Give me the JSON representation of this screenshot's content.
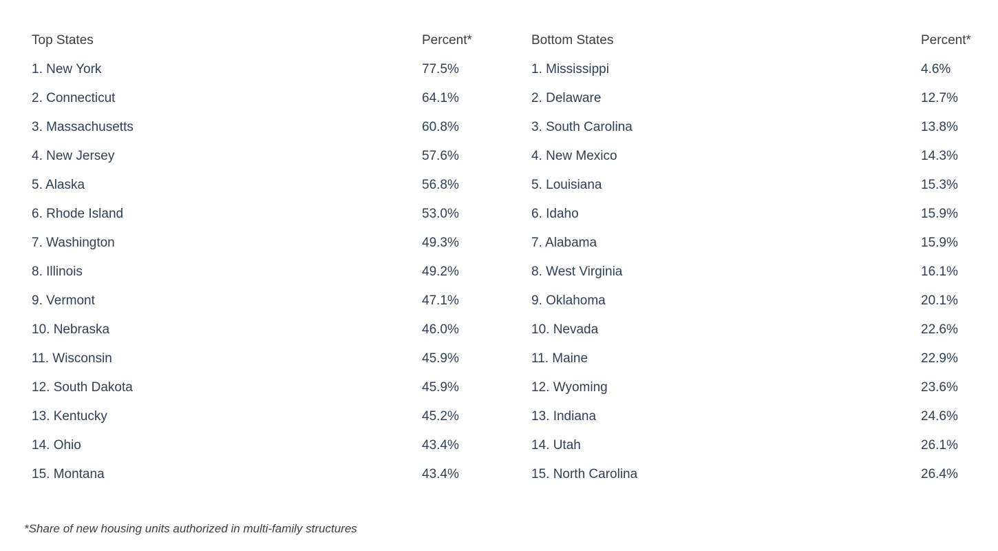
{
  "colors": {
    "background": "#ffffff",
    "header_text": "#3c3c3c",
    "data_text": "#2f3f55",
    "footnote_text": "#3d3d3d"
  },
  "chart_data": {
    "type": "table",
    "layout": "two side-by-side ranked tables, percent column left-aligned at fixed offset, no gridlines",
    "tables": [
      {
        "id": "top_states",
        "header": {
          "states": "Top States",
          "percent": "Percent*"
        },
        "rows": [
          {
            "rank": 1,
            "state": "New York",
            "percent": "77.5%",
            "value": 77.5
          },
          {
            "rank": 2,
            "state": "Connecticut",
            "percent": "64.1%",
            "value": 64.1
          },
          {
            "rank": 3,
            "state": "Massachusetts",
            "percent": "60.8%",
            "value": 60.8
          },
          {
            "rank": 4,
            "state": "New Jersey",
            "percent": "57.6%",
            "value": 57.6
          },
          {
            "rank": 5,
            "state": "Alaska",
            "percent": "56.8%",
            "value": 56.8
          },
          {
            "rank": 6,
            "state": "Rhode Island",
            "percent": "53.0%",
            "value": 53.0
          },
          {
            "rank": 7,
            "state": "Washington",
            "percent": "49.3%",
            "value": 49.3
          },
          {
            "rank": 8,
            "state": "Illinois",
            "percent": "49.2%",
            "value": 49.2
          },
          {
            "rank": 9,
            "state": "Vermont",
            "percent": "47.1%",
            "value": 47.1
          },
          {
            "rank": 10,
            "state": "Nebraska",
            "percent": "46.0%",
            "value": 46.0
          },
          {
            "rank": 11,
            "state": "Wisconsin",
            "percent": "45.9%",
            "value": 45.9
          },
          {
            "rank": 12,
            "state": "South Dakota",
            "percent": "45.9%",
            "value": 45.9
          },
          {
            "rank": 13,
            "state": "Kentucky",
            "percent": "45.2%",
            "value": 45.2
          },
          {
            "rank": 14,
            "state": "Ohio",
            "percent": "43.4%",
            "value": 43.4
          },
          {
            "rank": 15,
            "state": "Montana",
            "percent": "43.4%",
            "value": 43.4
          }
        ]
      },
      {
        "id": "bottom_states",
        "header": {
          "states": "Bottom States",
          "percent": "Percent*"
        },
        "rows": [
          {
            "rank": 1,
            "state": "Mississippi",
            "percent": "4.6%",
            "value": 4.6
          },
          {
            "rank": 2,
            "state": "Delaware",
            "percent": "12.7%",
            "value": 12.7
          },
          {
            "rank": 3,
            "state": "South Carolina",
            "percent": "13.8%",
            "value": 13.8
          },
          {
            "rank": 4,
            "state": "New Mexico",
            "percent": "14.3%",
            "value": 14.3
          },
          {
            "rank": 5,
            "state": "Louisiana",
            "percent": "15.3%",
            "value": 15.3
          },
          {
            "rank": 6,
            "state": "Idaho",
            "percent": "15.9%",
            "value": 15.9
          },
          {
            "rank": 7,
            "state": "Alabama",
            "percent": "15.9%",
            "value": 15.9
          },
          {
            "rank": 8,
            "state": "West Virginia",
            "percent": "16.1%",
            "value": 16.1
          },
          {
            "rank": 9,
            "state": "Oklahoma",
            "percent": "20.1%",
            "value": 20.1
          },
          {
            "rank": 10,
            "state": "Nevada",
            "percent": "22.6%",
            "value": 22.6
          },
          {
            "rank": 11,
            "state": "Maine",
            "percent": "22.9%",
            "value": 22.9
          },
          {
            "rank": 12,
            "state": "Wyoming",
            "percent": "23.6%",
            "value": 23.6
          },
          {
            "rank": 13,
            "state": "Indiana",
            "percent": "24.6%",
            "value": 24.6
          },
          {
            "rank": 14,
            "state": "Utah",
            "percent": "26.1%",
            "value": 26.1
          },
          {
            "rank": 15,
            "state": "North Carolina",
            "percent": "26.4%",
            "value": 26.4
          }
        ]
      }
    ],
    "footnote": "*Share of new housing units authorized in multi-family structures"
  }
}
